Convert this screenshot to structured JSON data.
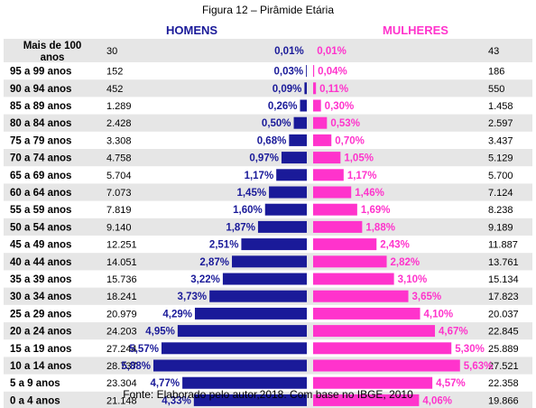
{
  "title": "Figura 12 – Pirâmide Etária",
  "source": "Fonte: Elaborado pelo autor,2018. Com base no IBGE, 2010",
  "colors": {
    "men": "#1a1a99",
    "women": "#ff33cc",
    "stripe": "#e6e6e6"
  },
  "chart_data": {
    "type": "bar",
    "orientation": "horizontal-pyramid",
    "title": "Figura 12 – Pirâmide Etária",
    "categories": [
      "Mais de 100 anos",
      "95 a 99 anos",
      "90 a 94 anos",
      "85 a 89 anos",
      "80 a 84 anos",
      "75 a 79 anos",
      "70 a 74 anos",
      "65 a 69 anos",
      "60 a 64 anos",
      "55 a 59 anos",
      "50 a 54 anos",
      "45 a 49 anos",
      "40 a 44 anos",
      "35 a 39 anos",
      "30 a 34 anos",
      "25 a 29 anos",
      "20 a 24 anos",
      "15 a 19 anos",
      "10 a 14 anos",
      "5 a 9 anos",
      "0 a 4 anos"
    ],
    "series": [
      {
        "name": "HOMENS",
        "counts": [
          "30",
          "152",
          "452",
          "1.289",
          "2.428",
          "3.308",
          "4.758",
          "5.704",
          "7.073",
          "7.819",
          "9.140",
          "12.251",
          "14.051",
          "15.736",
          "18.241",
          "20.979",
          "24.203",
          "27.244",
          "28.737",
          "23.304",
          "21.148"
        ],
        "percent_labels": [
          "0,01%",
          "0,03%",
          "0,09%",
          "0,26%",
          "0,50%",
          "0,68%",
          "0,97%",
          "1,17%",
          "1,45%",
          "1,60%",
          "1,87%",
          "2,51%",
          "2,87%",
          "3,22%",
          "3,73%",
          "4,29%",
          "4,95%",
          "5,57%",
          "5,88%",
          "4,77%",
          "4,33%"
        ],
        "values": [
          0.01,
          0.03,
          0.09,
          0.26,
          0.5,
          0.68,
          0.97,
          1.17,
          1.45,
          1.6,
          1.87,
          2.51,
          2.87,
          3.22,
          3.73,
          4.29,
          4.95,
          5.57,
          5.88,
          4.77,
          4.33
        ]
      },
      {
        "name": "MULHERES",
        "counts": [
          "43",
          "186",
          "550",
          "1.458",
          "2.597",
          "3.437",
          "5.129",
          "5.700",
          "7.124",
          "8.238",
          "9.189",
          "11.887",
          "13.761",
          "15.134",
          "17.823",
          "20.037",
          "22.845",
          "25.889",
          "27.521",
          "22.358",
          "19.866"
        ],
        "percent_labels": [
          "0,01%",
          "0,04%",
          "0,11%",
          "0,30%",
          "0,53%",
          "0,70%",
          "1,05%",
          "1,17%",
          "1,46%",
          "1,69%",
          "1,88%",
          "2,43%",
          "2,82%",
          "3,10%",
          "3,65%",
          "4,10%",
          "4,67%",
          "5,30%",
          "5,63%",
          "4,57%",
          "4,06%"
        ],
        "values": [
          0.01,
          0.04,
          0.11,
          0.3,
          0.53,
          0.7,
          1.05,
          1.17,
          1.46,
          1.69,
          1.88,
          2.43,
          2.82,
          3.1,
          3.65,
          4.1,
          4.67,
          5.3,
          5.63,
          4.57,
          4.06
        ]
      }
    ],
    "xlabel": "",
    "ylabel": "",
    "grid": false,
    "legend": "column headers"
  }
}
